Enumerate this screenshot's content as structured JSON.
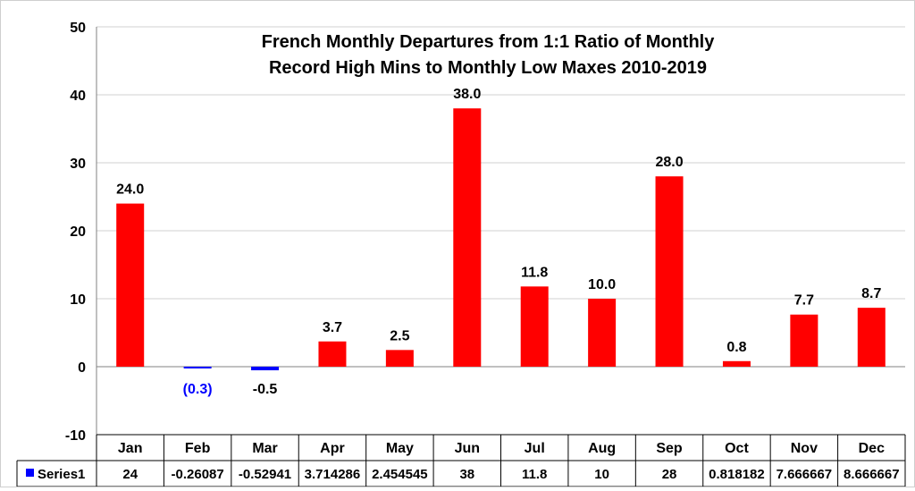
{
  "chart_data": {
    "type": "bar",
    "title_lines": [
      "French Monthly Departures from 1:1 Ratio of Monthly",
      "Record High Mins to Monthly Low Maxes 2010-2019"
    ],
    "categories": [
      "Jan",
      "Feb",
      "Mar",
      "Apr",
      "May",
      "Jun",
      "Jul",
      "Aug",
      "Sep",
      "Oct",
      "Nov",
      "Dec"
    ],
    "series": [
      {
        "name": "Series1",
        "values": [
          24,
          -0.26087,
          -0.52941,
          3.714286,
          2.454545,
          38,
          11.8,
          10,
          28,
          0.818182,
          7.666667,
          8.666667
        ]
      }
    ],
    "data_labels": [
      "24.0",
      "(0.3)",
      "-0.5",
      "3.7",
      "2.5",
      "38.0",
      "11.8",
      "10.0",
      "28.0",
      "0.8",
      "7.7",
      "8.7"
    ],
    "table_values": [
      "24",
      "-0.26087",
      "-0.52941",
      "3.714286",
      "2.454545",
      "38",
      "11.8",
      "10",
      "28",
      "0.818182",
      "7.666667",
      "8.666667"
    ],
    "y_ticks": [
      "50",
      "40",
      "30",
      "20",
      "10",
      "0",
      "-10"
    ],
    "ylim": [
      -10,
      50
    ],
    "grid": true,
    "data_table": true,
    "colors": {
      "positive": "#ff0000",
      "negative": "#0000ff",
      "negative_label": "#0000ff",
      "label": "#000000",
      "grid": "#d0d0d0",
      "axis": "#808080"
    }
  }
}
